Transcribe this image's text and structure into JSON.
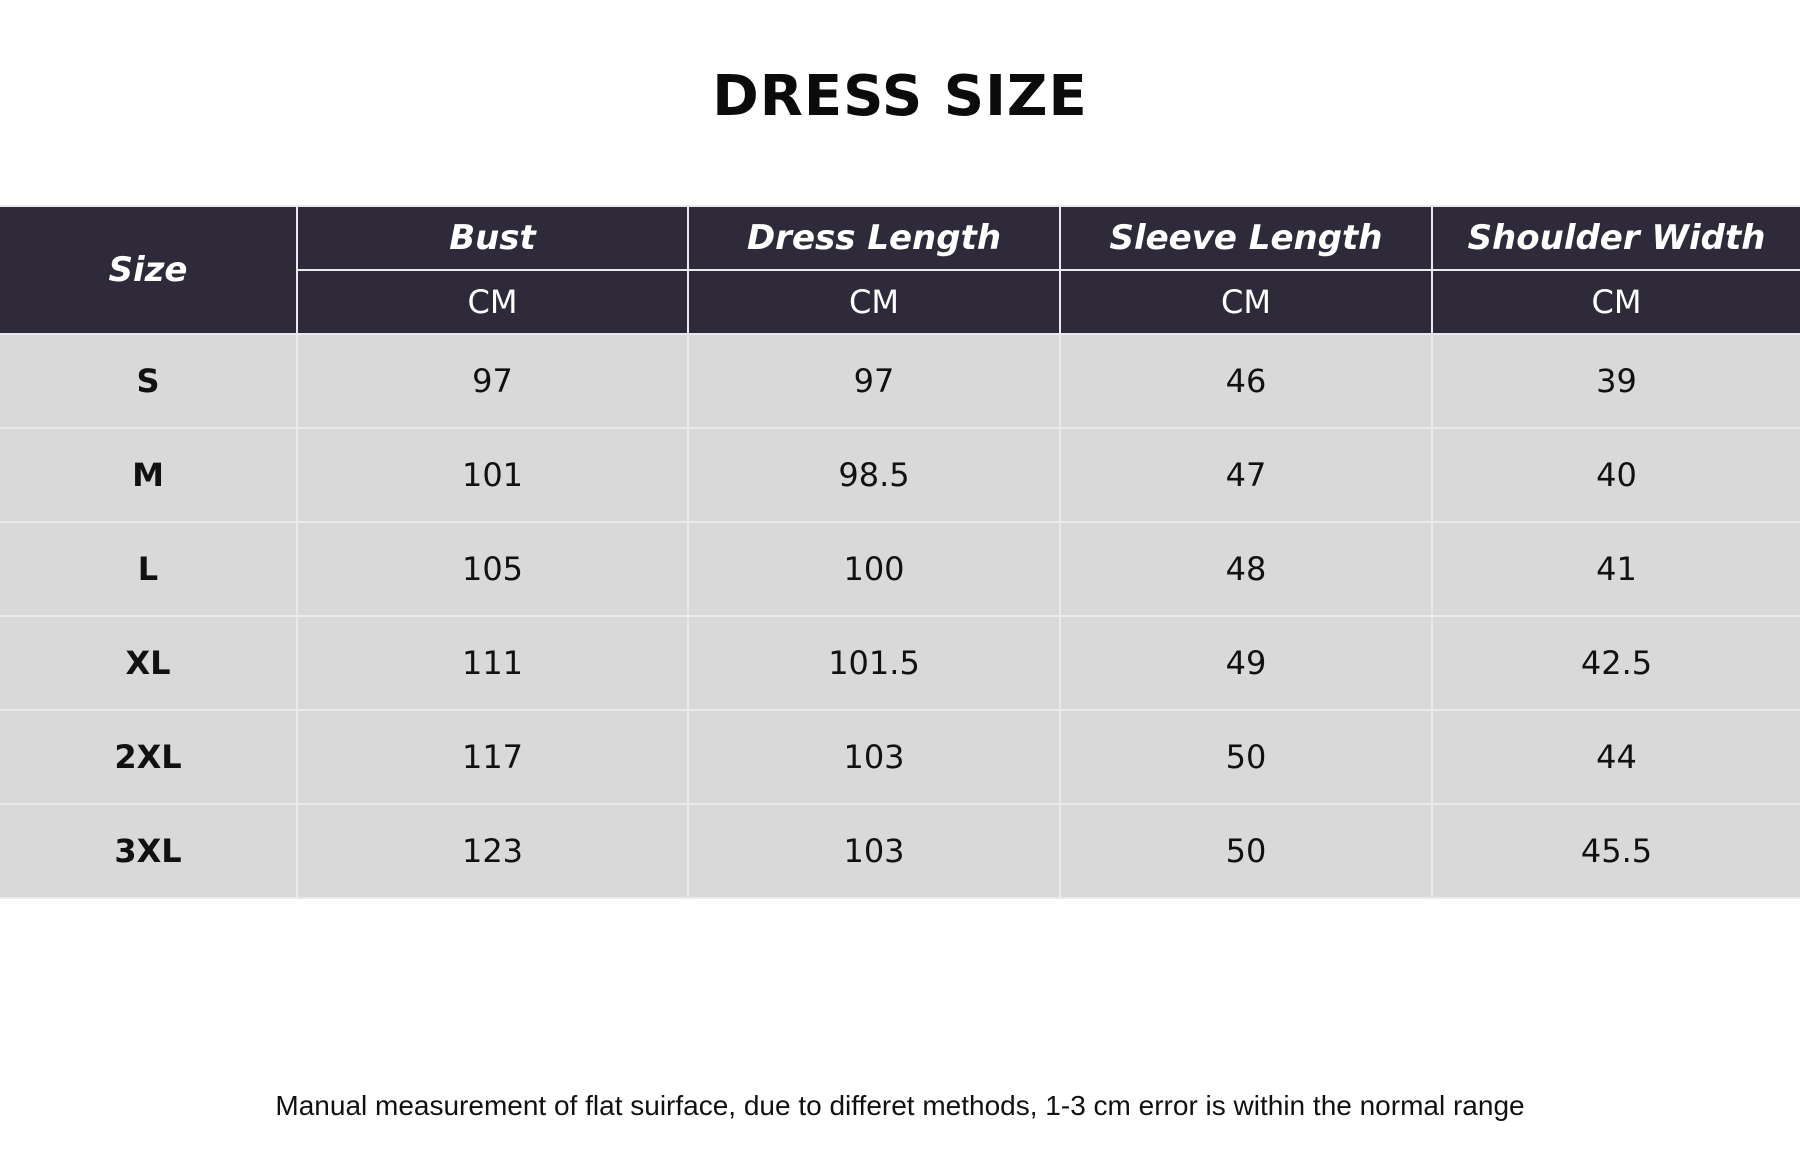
{
  "title": "DRESS SIZE",
  "table": {
    "size_header": "Size",
    "columns": [
      {
        "label": "Bust",
        "unit": "CM"
      },
      {
        "label": "Dress Length",
        "unit": "CM"
      },
      {
        "label": "Sleeve Length",
        "unit": "CM"
      },
      {
        "label": "Shoulder Width",
        "unit": "CM"
      }
    ],
    "rows": [
      {
        "size": "S",
        "values": [
          "97",
          "97",
          "46",
          "39"
        ]
      },
      {
        "size": "M",
        "values": [
          "101",
          "98.5",
          "47",
          "40"
        ]
      },
      {
        "size": "L",
        "values": [
          "105",
          "100",
          "48",
          "41"
        ]
      },
      {
        "size": "XL",
        "values": [
          "111",
          "101.5",
          "49",
          "42.5"
        ]
      },
      {
        "size": "2XL",
        "values": [
          "117",
          "103",
          "50",
          "44"
        ]
      },
      {
        "size": "3XL",
        "values": [
          "123",
          "103",
          "50",
          "45.5"
        ]
      }
    ]
  },
  "footnote": "Manual measurement of flat suirface, due to differet methods, 1-3 cm error is within the normal range",
  "colors": {
    "header_bg": "#2e2a3a",
    "row_bg": "#d9d9d9"
  }
}
